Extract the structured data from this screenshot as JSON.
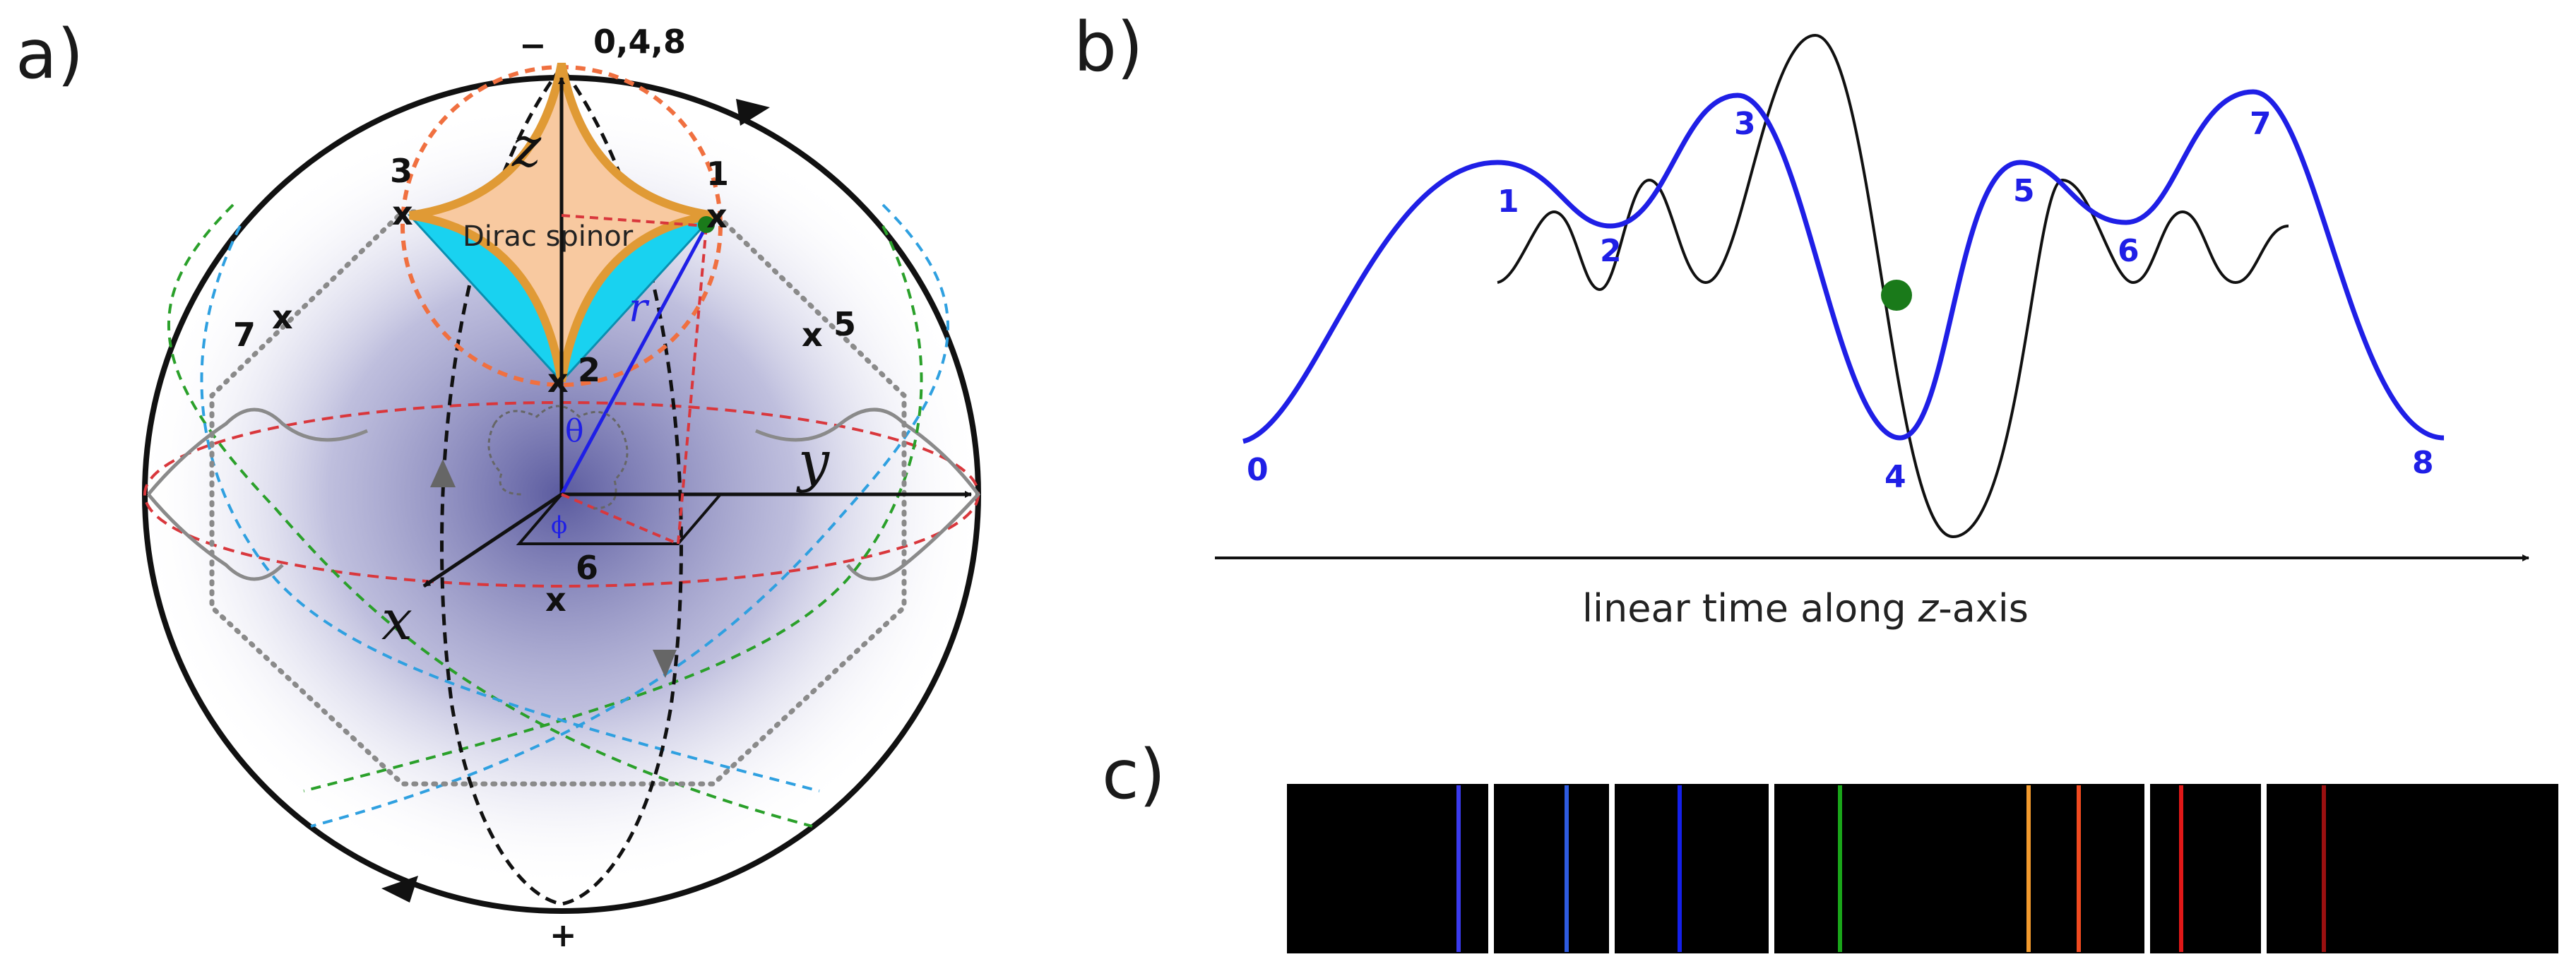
{
  "colors": {
    "blue_curve": "#1f1fe6",
    "black_curve": "#111111",
    "green_dot": "#1a7a1a",
    "spinor_fill": "#f8c9a0",
    "spinor_edge": "#e09a35",
    "cone_fill": "#19d2f0",
    "sphere_glow": "#4a4a9a",
    "red_dash": "#d9373c",
    "green_dash": "#2aa02a",
    "cyan_dash": "#2fa0e0"
  },
  "panel_a": {
    "label": "a)",
    "top_sign": "−",
    "top_points": "0,4,8",
    "bottom_sign": "+",
    "points": {
      "p1": "1",
      "p2": "2",
      "p3": "3",
      "p5": "5",
      "p6": "6",
      "p7": "7"
    },
    "axes": {
      "z": "z",
      "y": "y",
      "x": "x"
    },
    "r_label": "r",
    "theta_label": "θ",
    "phi_label": "ϕ",
    "spinor_label": "Dirac spinor",
    "marker": "x"
  },
  "panel_b": {
    "label": "b)",
    "axis_caption_before": "linear time along ",
    "axis_caption_italic": "z",
    "axis_caption_after": "-axis",
    "blue_labels": [
      "0",
      "1",
      "2",
      "3",
      "4",
      "5",
      "6",
      "7",
      "8"
    ]
  },
  "panel_c": {
    "label": "c)",
    "line_colors": [
      "#3a3aee",
      "#2e5be0",
      "#1420ea",
      "#1aa51a",
      "#f29a2e",
      "#f04a20",
      "#e01818",
      "#9a1010"
    ]
  }
}
